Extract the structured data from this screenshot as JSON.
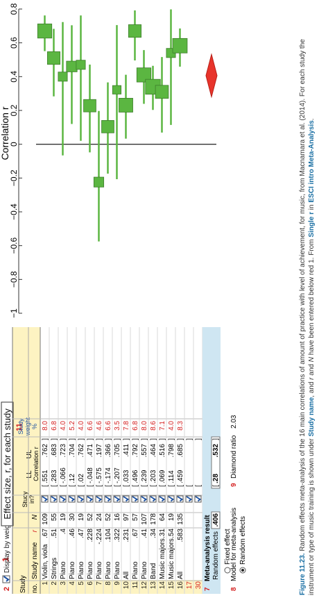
{
  "header": {
    "top_number": "1",
    "row_number": "2",
    "display_label": "Display by weight",
    "callout": "Effect size, r, for each study",
    "col11": "11"
  },
  "columns": {
    "study": "Study",
    "no": "no.",
    "study_name": "Study name",
    "r": "r",
    "n": "N",
    "study_in": "Study in?",
    "ll": "LL",
    "ul": "UL",
    "correlation_r": "Correlation r",
    "study_weight": "Study weight",
    "pct": "%"
  },
  "studies": [
    {
      "no": "1",
      "name": "Violin, viola",
      "r": ".67",
      "n": "109",
      "ll": ".551",
      "ul": ".762",
      "w": "8.0"
    },
    {
      "no": "2",
      "name": "Strings",
      "r": ".51",
      "n": "55",
      "ll": ".283",
      "ul": ".683",
      "w": "6.8"
    },
    {
      "no": "3",
      "name": "Piano",
      "r": ".4",
      "n": "19",
      "ll": "-.066",
      "ul": ".723",
      "w": "4.0"
    },
    {
      "no": "4",
      "name": "Piano",
      "r": ".46",
      "n": "30",
      "ll": ".12",
      "ul": ".704",
      "w": "5.2"
    },
    {
      "no": "5",
      "name": "Piano",
      "r": ".47",
      "n": "19",
      "ll": ".02",
      "ul": ".762",
      "w": "4.0"
    },
    {
      "no": "6",
      "name": "Piano",
      "r": ".228",
      "n": "52",
      "ll": "-.048",
      "ul": ".471",
      "w": "6.6"
    },
    {
      "no": "7",
      "name": "Piano",
      "r": "-.224",
      "n": "24",
      "ll": "-.575",
      "ul": ".197",
      "w": "4.6"
    },
    {
      "no": "8",
      "name": "Piano",
      "r": ".104",
      "n": "52",
      "ll": "-.174",
      "ul": ".366",
      "w": "6.6"
    },
    {
      "no": "9",
      "name": "Piano",
      "r": ".322",
      "n": "16",
      "ll": "-.207",
      "ul": ".705",
      "w": "3.5"
    },
    {
      "no": "10",
      "name": "All",
      "r": ".231",
      "n": "97",
      "ll": ".033",
      "ul": ".411",
      "w": "7.8"
    },
    {
      "no": "11",
      "name": "Piano",
      "r": ".67",
      "n": "57",
      "ll": ".496",
      "ul": ".792",
      "w": "6.8"
    },
    {
      "no": "12",
      "name": "Piano",
      "r": ".41",
      "n": "107",
      "ll": ".239",
      "ul": ".557",
      "w": "8.0"
    },
    {
      "no": "13",
      "name": "Band",
      "r": ".34",
      "n": "178",
      "ll": ".203",
      "ul": ".464",
      "w": "8.6"
    },
    {
      "no": "14",
      "name": "Music majors",
      "r": ".31",
      "n": "64",
      "ll": ".069",
      "ul": ".516",
      "w": "7.1"
    },
    {
      "no": "15",
      "name": "Music majors",
      "r": ".54",
      "n": "19",
      "ll": ".114",
      "ul": ".798",
      "w": "4.0"
    },
    {
      "no": "16",
      "name": "All",
      "r": ".583",
      "n": "135",
      "ll": ".459",
      "ul": ".685",
      "w": "8.3"
    },
    {
      "no": "17",
      "name": "",
      "r": "",
      "n": "",
      "ll": "",
      "ul": "",
      "w": ""
    },
    {
      "no": "30",
      "name": "",
      "r": "",
      "n": "",
      "ll": "",
      "ul": "",
      "w": ""
    }
  ],
  "meta": {
    "row_no": "7",
    "title": "Meta-analysis result",
    "label": "Random effects",
    "r": ".406",
    "ll": ".28",
    "ul": ".532"
  },
  "model": {
    "row_no": "8",
    "title": "Model for meta-analysis",
    "opt_fixed": "Fixed effect",
    "opt_random": "Random effects",
    "ratio_no": "9",
    "ratio_label": "Diamond ratio",
    "ratio_value": "2.03"
  },
  "caption": {
    "fig": "Figure 11.23.",
    "text1": "Random effects meta-analysis of the 16 main correlations of amount of practice with level of achievement, for music, from Macnamara et al. (2014). For each study the instrument or type of music training is shown under",
    "bold1": "Study name",
    "text2": ", and",
    "text3": "r",
    "text4": "and",
    "text5": "N",
    "text6": "have been entered below red 1. From",
    "bold2": "Single r",
    "text7": "in",
    "bold3": "ESCI intro Meta-Analysis",
    "text8": "."
  },
  "colors": {
    "marker": "#5bb641",
    "marker_edge": "#3d7d2b",
    "diamond": "#e8342b",
    "header_yellow": "#fdf3c2",
    "meta_blue": "#cfe6f2"
  },
  "chart_data": {
    "type": "forest",
    "xlabel": "Correlation r",
    "xlim": [
      -1,
      0.8
    ],
    "xticks": [
      "−1",
      "−0.8",
      "−0.6",
      "−0.4",
      "−0.2",
      "0",
      "0.2",
      "0.4",
      "0.6",
      "0.8"
    ],
    "tick_values": [
      -1,
      -0.8,
      -0.6,
      -0.4,
      -0.2,
      0,
      0.2,
      0.4,
      0.6,
      0.8
    ],
    "points": [
      {
        "r": 0.67,
        "ll": 0.551,
        "ul": 0.762,
        "w": 8.0
      },
      {
        "r": 0.51,
        "ll": 0.283,
        "ul": 0.683,
        "w": 6.8
      },
      {
        "r": 0.4,
        "ll": -0.066,
        "ul": 0.723,
        "w": 4.0
      },
      {
        "r": 0.46,
        "ll": 0.12,
        "ul": 0.704,
        "w": 5.2
      },
      {
        "r": 0.47,
        "ll": 0.02,
        "ul": 0.762,
        "w": 4.0
      },
      {
        "r": 0.228,
        "ll": -0.048,
        "ul": 0.471,
        "w": 6.6
      },
      {
        "r": -0.224,
        "ll": -0.575,
        "ul": 0.197,
        "w": 4.6
      },
      {
        "r": 0.104,
        "ll": -0.174,
        "ul": 0.366,
        "w": 6.6
      },
      {
        "r": 0.322,
        "ll": -0.207,
        "ul": 0.705,
        "w": 3.5
      },
      {
        "r": 0.231,
        "ll": 0.033,
        "ul": 0.411,
        "w": 7.8
      },
      {
        "r": 0.67,
        "ll": 0.496,
        "ul": 0.792,
        "w": 6.8
      },
      {
        "r": 0.41,
        "ll": 0.239,
        "ul": 0.557,
        "w": 8.0
      },
      {
        "r": 0.34,
        "ll": 0.203,
        "ul": 0.464,
        "w": 8.6
      },
      {
        "r": 0.31,
        "ll": 0.069,
        "ul": 0.516,
        "w": 7.1
      },
      {
        "r": 0.54,
        "ll": 0.114,
        "ul": 0.798,
        "w": 4.0
      },
      {
        "r": 0.583,
        "ll": 0.459,
        "ul": 0.685,
        "w": 8.3
      }
    ],
    "summary": {
      "r": 0.406,
      "ll": 0.28,
      "ul": 0.532
    }
  }
}
